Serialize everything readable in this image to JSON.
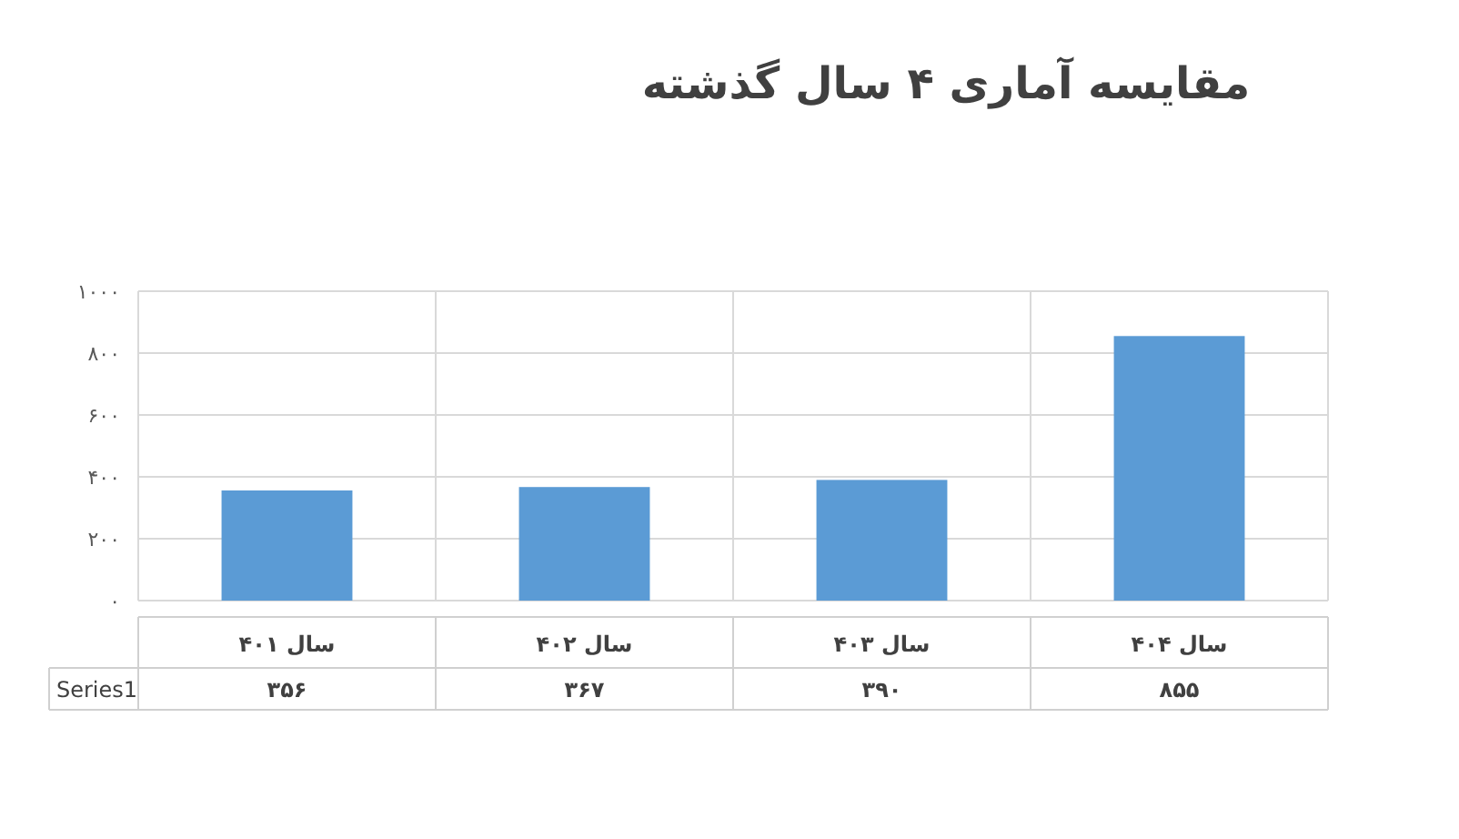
{
  "chart_data": {
    "type": "bar",
    "title": "مقایسه آماری ۴ سال گذشته",
    "categories": [
      "سال ۴۰۱",
      "سال ۴۰۲",
      "سال ۴۰۳",
      "سال ۴۰۴"
    ],
    "series": [
      {
        "name": "Series1",
        "color": "#5b9bd5",
        "values": [
          356,
          367,
          390,
          855
        ],
        "value_labels": [
          "۳۵۶",
          "۳۶۷",
          "۳۹۰",
          "۸۵۵"
        ]
      }
    ],
    "ylim": [
      0,
      1000
    ],
    "yticks": [
      {
        "value": 0,
        "label": "۰"
      },
      {
        "value": 200,
        "label": "۲۰۰"
      },
      {
        "value": 400,
        "label": "۴۰۰"
      },
      {
        "value": 600,
        "label": "۶۰۰"
      },
      {
        "value": 800,
        "label": "۸۰۰"
      },
      {
        "value": 1000,
        "label": "۱۰۰۰"
      }
    ],
    "grid": true
  }
}
